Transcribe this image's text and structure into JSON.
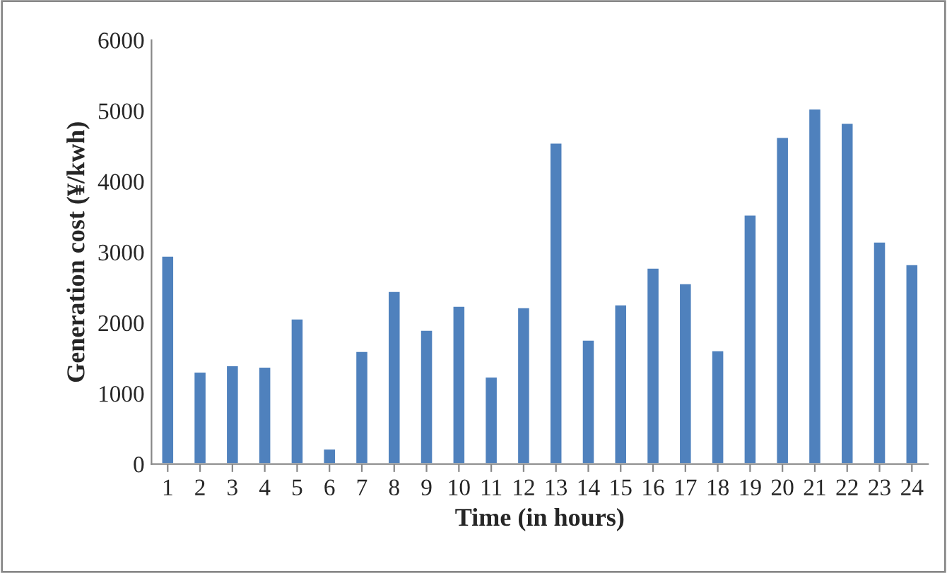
{
  "chart_data": {
    "type": "bar",
    "xlabel": "Time (in hours)",
    "ylabel": "Generation cost (¥/kwh)",
    "categories": [
      "1",
      "2",
      "3",
      "4",
      "5",
      "6",
      "7",
      "8",
      "9",
      "10",
      "11",
      "12",
      "13",
      "14",
      "15",
      "16",
      "17",
      "18",
      "19",
      "20",
      "21",
      "22",
      "23",
      "24"
    ],
    "series": [
      {
        "color": "#4f81bd",
        "values": [
          2950,
          1310,
          1400,
          1380,
          2060,
          220,
          1600,
          2450,
          1900,
          2240,
          1240,
          2220,
          4550,
          1760,
          2260,
          2780,
          2560,
          1610,
          3530,
          4630,
          5030,
          4830,
          3150,
          2830
        ]
      }
    ],
    "ylim": [
      0,
      6000
    ],
    "yticks": [
      0,
      1000,
      2000,
      3000,
      4000,
      5000,
      6000
    ],
    "grid": false,
    "legend": false
  }
}
